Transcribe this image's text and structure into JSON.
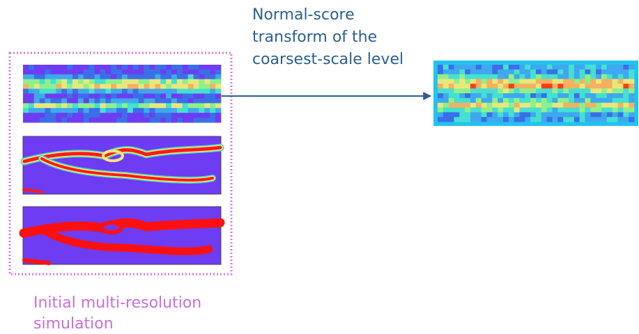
{
  "annotation": {
    "lines": [
      "Normal-score",
      "transform of the",
      "coarsest-scale level"
    ]
  },
  "caption": {
    "lines": [
      "Initial multi-resolution",
      "simulation"
    ]
  }
}
